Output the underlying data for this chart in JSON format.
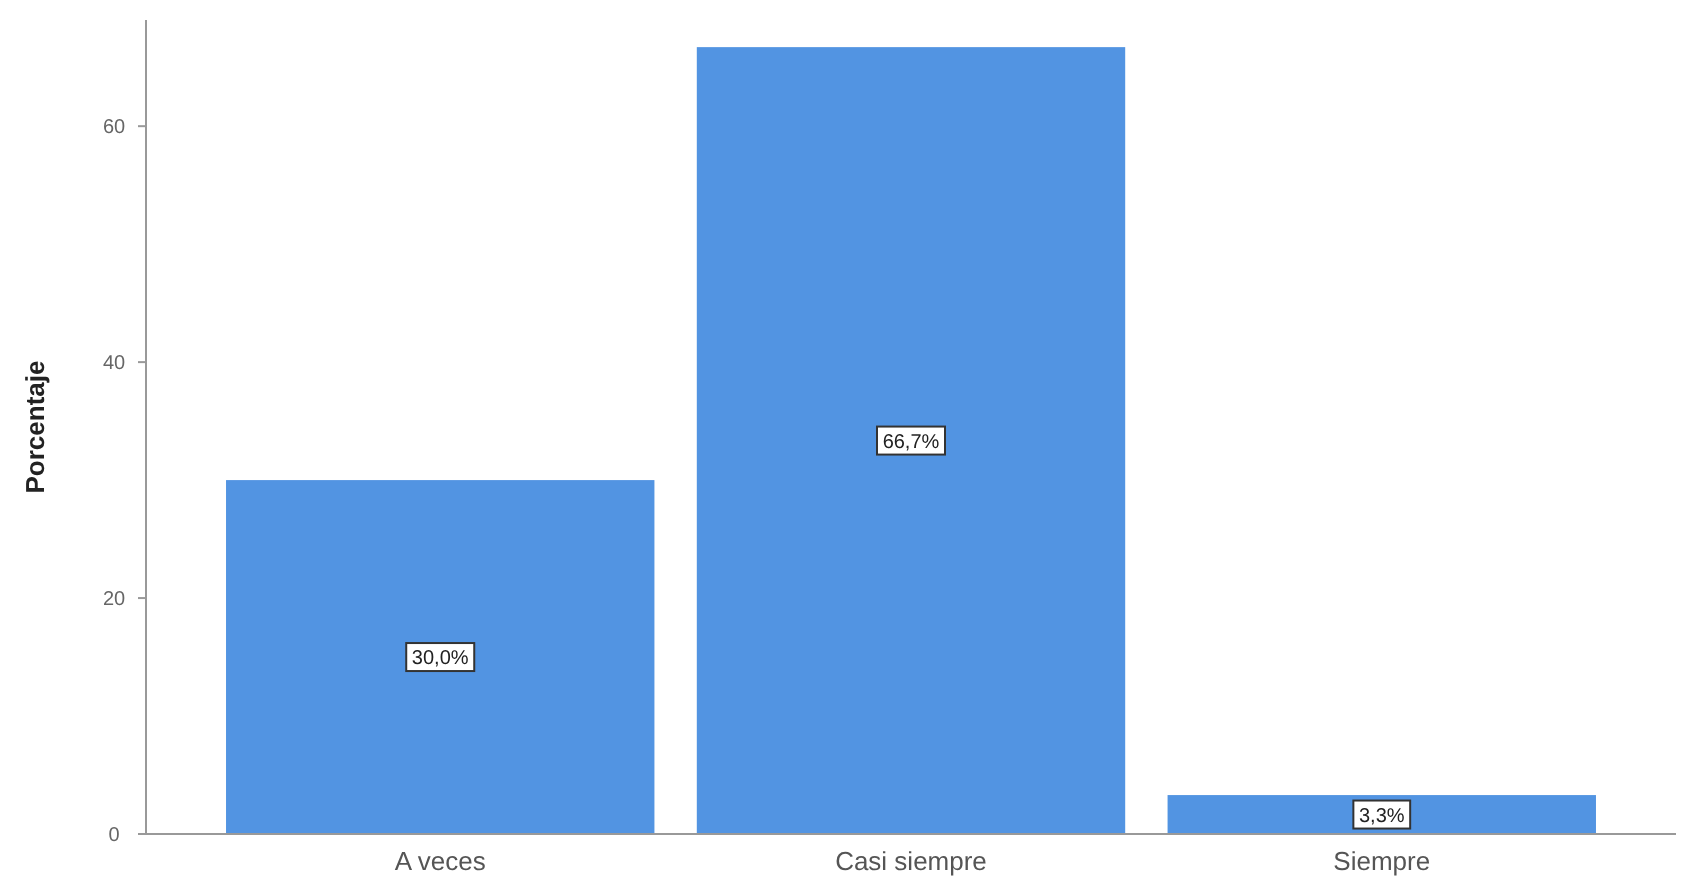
{
  "chart_data": {
    "type": "bar",
    "ylabel": "Porcentaje",
    "categories": [
      "A veces",
      "Casi siempre",
      "Siempre"
    ],
    "values": [
      30.0,
      66.7,
      3.3
    ],
    "value_labels": [
      "30,0%",
      "66,7%",
      "3,3%"
    ],
    "color": "#5294e2",
    "ylim": [
      0,
      69
    ],
    "yticks": [
      0,
      20,
      40,
      60
    ],
    "grid": false
  }
}
